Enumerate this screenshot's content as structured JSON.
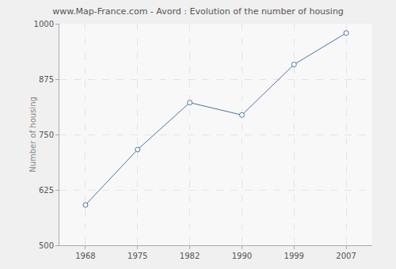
{
  "chart_data": {
    "type": "line",
    "title": "www.Map-France.com - Avord : Evolution of the number of housing",
    "y_label": "Number of housing",
    "categories": [
      "1968",
      "1975",
      "1982",
      "1990",
      "1999",
      "2007"
    ],
    "values": [
      591,
      716,
      822,
      794,
      908,
      979
    ],
    "color": "#4a74a8",
    "marker": "circle",
    "ylim": [
      500,
      1000
    ],
    "yticks": [
      500,
      625,
      750,
      875,
      1000
    ],
    "grid": true
  }
}
